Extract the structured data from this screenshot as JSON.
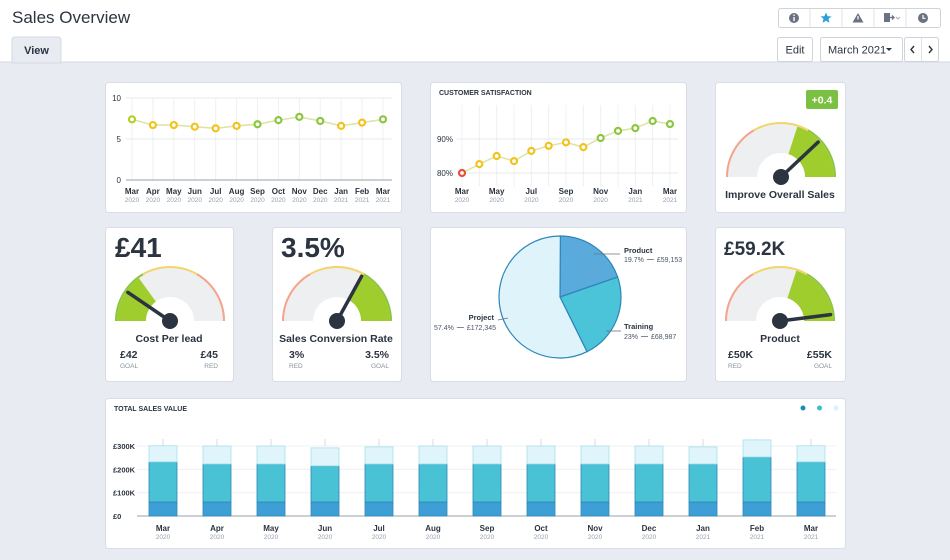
{
  "header": {
    "title": "Sales Overview",
    "tab": "View",
    "edit": "Edit",
    "period": "March 2021"
  },
  "chart_data": [
    {
      "type": "line",
      "categories": [
        "Mar",
        "Apr",
        "May",
        "Jun",
        "Jul",
        "Aug",
        "Sep",
        "Oct",
        "Nov",
        "Dec",
        "Jan",
        "Feb",
        "Mar"
      ],
      "category_years": [
        "2020",
        "2020",
        "2020",
        "2020",
        "2020",
        "2020",
        "2020",
        "2020",
        "2020",
        "2020",
        "2021",
        "2021",
        "2021"
      ],
      "values": [
        7.4,
        6.7,
        6.7,
        6.5,
        6.3,
        6.6,
        6.8,
        7.3,
        7.7,
        7.2,
        6.6,
        7.0,
        7.4
      ],
      "point_colors": [
        "#b8cf2a",
        "#f2c31d",
        "#f2c31d",
        "#f2c31d",
        "#f2c31d",
        "#f2c31d",
        "#8cc63f",
        "#8cc63f",
        "#8cc63f",
        "#8cc63f",
        "#f2c31d",
        "#f2c31d",
        "#8cc63f"
      ],
      "line_color": "#dde3a4",
      "ylim": [
        0,
        10
      ],
      "yticks": [
        0,
        5,
        10
      ],
      "grid": true
    },
    {
      "type": "line",
      "title": "CUSTOMER SATISFACTION",
      "categories": [
        "Mar",
        null,
        "May",
        null,
        "Jul",
        null,
        "Sep",
        null,
        "Nov",
        null,
        "Jan",
        null,
        "Mar"
      ],
      "category_years": [
        "2020",
        null,
        "2020",
        null,
        "2020",
        null,
        "2020",
        null,
        "2020",
        null,
        "2021",
        null,
        "2021"
      ],
      "values": [
        80,
        82.6,
        85,
        83.5,
        86.5,
        88,
        89,
        87.6,
        90.3,
        92.4,
        93.2,
        95.3,
        94.4
      ],
      "point_colors": [
        "#e8503a",
        "#f2c31d",
        "#f2c31d",
        "#f2c31d",
        "#f2c31d",
        "#f2c31d",
        "#f2c31d",
        "#f2c31d",
        "#8cc63f",
        "#8cc63f",
        "#8cc63f",
        "#8cc63f",
        "#8cc63f"
      ],
      "line_color": "#dde3a4",
      "ylim": [
        76,
        100
      ],
      "yticks": [
        {
          "value": 80,
          "label": "80%"
        },
        {
          "value": 90,
          "label": "90%"
        }
      ],
      "grid": true
    },
    {
      "type": "gauge",
      "label": "Improve Overall Sales",
      "badge": "+0.4",
      "value": 76,
      "lim": [
        0,
        100
      ],
      "zone": [
        60,
        100
      ],
      "rim": [
        "#f4a38c",
        "#f5d46a",
        "#8cc63f"
      ]
    },
    {
      "type": "gauge",
      "kpi": "£41",
      "label": "Cost Per lead",
      "left_value": "£42",
      "left_caption": "GOAL",
      "right_value": "£45",
      "right_caption": "RED",
      "value": 19,
      "lim": [
        0,
        100
      ],
      "zone": [
        0,
        30
      ],
      "rim": [
        "#8cc63f",
        "#f5d46a",
        "#f4a38c"
      ]
    },
    {
      "type": "gauge",
      "kpi": "3.5%",
      "label": "Sales Conversion Rate",
      "left_value": "3%",
      "left_caption": "RED",
      "right_value": "3.5%",
      "right_caption": "GOAL",
      "value": 66,
      "lim": [
        0,
        100
      ],
      "zone": [
        65,
        100
      ],
      "rim": [
        "#f4a38c",
        "#f5d46a",
        "#8cc63f"
      ]
    },
    {
      "type": "pie",
      "categories": [
        "Product",
        "Training",
        "Project"
      ],
      "values": [
        19.7,
        23,
        57.4
      ],
      "value_labels": [
        "19.7%",
        "23%",
        "57.4%"
      ],
      "amount_labels": [
        "£59,153",
        "£68,987",
        "£172,345"
      ],
      "colors": [
        "#5aabdb",
        "#4bc3d8",
        "#dff4fa"
      ],
      "stroke": "#2c86b8"
    },
    {
      "type": "gauge",
      "kpi": "£59.2K",
      "label": "Product",
      "left_value": "£50K",
      "left_caption": "RED",
      "right_value": "£55K",
      "right_caption": "GOAL",
      "value": 96,
      "lim": [
        0,
        100
      ],
      "zone": [
        60,
        100
      ],
      "rim": [
        "#f4a38c",
        "#f5d46a",
        "#8cc63f"
      ]
    },
    {
      "type": "bar",
      "stacked": true,
      "title": "TOTAL SALES VALUE",
      "categories": [
        "Mar",
        "Apr",
        "May",
        "Jun",
        "Jul",
        "Aug",
        "Sep",
        "Oct",
        "Nov",
        "Dec",
        "Jan",
        "Feb",
        "Mar"
      ],
      "category_years": [
        "2020",
        "2020",
        "2020",
        "2020",
        "2020",
        "2020",
        "2020",
        "2020",
        "2020",
        "2020",
        "2021",
        "2021",
        "2021"
      ],
      "series": [
        {
          "color": "#3d9fd6",
          "legend_color": "#1a8db5",
          "values": [
            60,
            60,
            60,
            60,
            60,
            60,
            60,
            60,
            60,
            60,
            60,
            60,
            60
          ]
        },
        {
          "color": "#4ac2d6",
          "legend_color": "#3bbfd0",
          "values": [
            172,
            163,
            163,
            155,
            163,
            163,
            163,
            163,
            163,
            163,
            163,
            193,
            172
          ]
        },
        {
          "color": "#dff5fb",
          "legend_color": "#d6f3f9",
          "values": [
            69,
            77,
            77,
            77,
            73,
            77,
            77,
            77,
            77,
            77,
            73,
            73,
            69
          ]
        }
      ],
      "ylim": [
        0,
        300
      ],
      "yticks": [
        {
          "value": 0,
          "label": "£0"
        },
        {
          "value": 100,
          "label": "£100K"
        },
        {
          "value": 200,
          "label": "£200K"
        },
        {
          "value": 300,
          "label": "£300K"
        }
      ],
      "grid": true
    }
  ]
}
